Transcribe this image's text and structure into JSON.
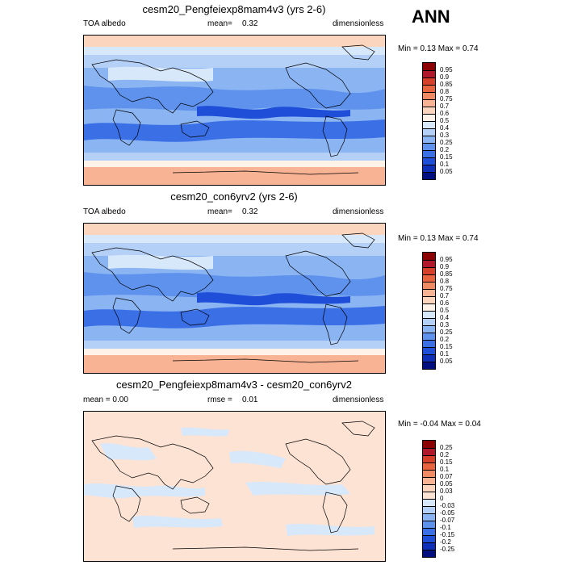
{
  "season": "ANN",
  "panels": [
    {
      "title": "cesm20_Pengfeiexp8mam4v3 (yrs 2-6)",
      "left": "TOA albedo",
      "mid_label": "mean=",
      "mid_value": "0.32",
      "right": "dimensionless",
      "minmax": "Min =  0.13 Max =  0.74",
      "levels": [
        "0.95",
        "0.9",
        "0.85",
        "0.8",
        "0.75",
        "0.7",
        "0.6",
        "0.5",
        "0.4",
        "0.3",
        "0.25",
        "0.2",
        "0.15",
        "0.1",
        "0.05"
      ],
      "colors": [
        "#8b0000",
        "#b2182b",
        "#d6402a",
        "#e8643e",
        "#f08a62",
        "#f8b294",
        "#fcd5be",
        "#fff2e8",
        "#d8e8fb",
        "#b4d0f7",
        "#8bb4f2",
        "#5e92ec",
        "#3a6fe6",
        "#1f4fd9",
        "#0f2fb8",
        "#000e80"
      ],
      "palette": "warm"
    },
    {
      "title": "cesm20_con6yrv2 (yrs 2-6)",
      "left": "TOA albedo",
      "mid_label": "mean=",
      "mid_value": "0.32",
      "right": "dimensionless",
      "minmax": "Min =  0.13 Max =  0.74",
      "levels": [
        "0.95",
        "0.9",
        "0.85",
        "0.8",
        "0.75",
        "0.7",
        "0.6",
        "0.5",
        "0.4",
        "0.3",
        "0.25",
        "0.2",
        "0.15",
        "0.1",
        "0.05"
      ],
      "colors": [
        "#8b0000",
        "#b2182b",
        "#d6402a",
        "#e8643e",
        "#f08a62",
        "#f8b294",
        "#fcd5be",
        "#fff2e8",
        "#d8e8fb",
        "#b4d0f7",
        "#8bb4f2",
        "#5e92ec",
        "#3a6fe6",
        "#1f4fd9",
        "#0f2fb8",
        "#000e80"
      ],
      "palette": "warm"
    },
    {
      "title": "cesm20_Pengfeiexp8mam4v3 - cesm20_con6yrv2",
      "left": "mean =  0.00",
      "mid_label": "rmse =",
      "mid_value": "0.01",
      "right": "dimensionless",
      "minmax": "Min = -0.04 Max =  0.04",
      "levels": [
        "0.25",
        "0.2",
        "0.15",
        "0.1",
        "0.07",
        "0.05",
        "0.03",
        "0",
        "-0.03",
        "-0.05",
        "-0.07",
        "-0.1",
        "-0.15",
        "-0.2",
        "-0.25"
      ],
      "colors": [
        "#8b0000",
        "#b2182b",
        "#d6402a",
        "#e8643e",
        "#f08a62",
        "#f8b294",
        "#fcd5be",
        "#fde3d4",
        "#d8e8fb",
        "#b4d0f7",
        "#8bb4f2",
        "#5e92ec",
        "#3a6fe6",
        "#1f4fd9",
        "#0f2fb8",
        "#000e80"
      ],
      "palette": "diff"
    }
  ],
  "chart_data": [
    {
      "type": "heatmap",
      "title": "cesm20_Pengfeiexp8mam4v3 (yrs 2-6)",
      "variable": "TOA albedo",
      "units": "dimensionless",
      "mean": 0.32,
      "min": 0.13,
      "max": 0.74,
      "contour_levels": [
        0.05,
        0.1,
        0.15,
        0.2,
        0.25,
        0.3,
        0.4,
        0.5,
        0.6,
        0.7,
        0.75,
        0.8,
        0.85,
        0.9,
        0.95
      ]
    },
    {
      "type": "heatmap",
      "title": "cesm20_con6yrv2 (yrs 2-6)",
      "variable": "TOA albedo",
      "units": "dimensionless",
      "mean": 0.32,
      "min": 0.13,
      "max": 0.74,
      "contour_levels": [
        0.05,
        0.1,
        0.15,
        0.2,
        0.25,
        0.3,
        0.4,
        0.5,
        0.6,
        0.7,
        0.75,
        0.8,
        0.85,
        0.9,
        0.95
      ]
    },
    {
      "type": "heatmap",
      "title": "cesm20_Pengfeiexp8mam4v3 - cesm20_con6yrv2",
      "units": "dimensionless",
      "mean": 0.0,
      "rmse": 0.01,
      "min": -0.04,
      "max": 0.04,
      "contour_levels": [
        -0.25,
        -0.2,
        -0.15,
        -0.1,
        -0.07,
        -0.05,
        -0.03,
        0,
        0.03,
        0.05,
        0.07,
        0.1,
        0.15,
        0.2,
        0.25
      ]
    }
  ]
}
